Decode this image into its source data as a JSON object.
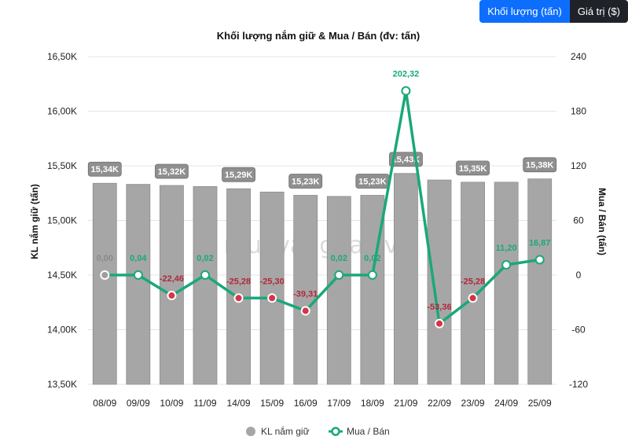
{
  "tabs": [
    {
      "label": "Khối lượng (tấn)",
      "active": true
    },
    {
      "label": "Giá trị ($)",
      "active": false
    }
  ],
  "watermark": "muavangbac.vn",
  "chart_data": {
    "type": "bar",
    "title": "Khối lượng nắm giữ & Mua / Bán (đv: tấn)",
    "categories": [
      "08/09",
      "09/09",
      "10/09",
      "11/09",
      "14/09",
      "15/09",
      "16/09",
      "17/09",
      "18/09",
      "21/09",
      "22/09",
      "23/09",
      "24/09",
      "25/09"
    ],
    "y_left": {
      "label": "KL nắm giữ (tấn)",
      "min": 13500,
      "max": 16500,
      "ticks": [
        13500,
        14000,
        14500,
        15000,
        15500,
        16000,
        16500
      ],
      "tick_labels": [
        "13,50K",
        "14,00K",
        "14,50K",
        "15,00K",
        "15,50K",
        "16,00K",
        "16,50K"
      ]
    },
    "y_right": {
      "label": "Mua / Bán (tấn)",
      "min": -120,
      "max": 240,
      "ticks": [
        -120,
        -60,
        0,
        60,
        120,
        180,
        240
      ],
      "tick_labels": [
        "-120",
        "-60",
        "0",
        "60",
        "120",
        "180",
        "240"
      ]
    },
    "series": [
      {
        "name": "KL nắm giữ",
        "type": "bar",
        "axis": "left",
        "color": "#a6a6a6",
        "values": [
          15340,
          15330,
          15320,
          15310,
          15290,
          15260,
          15230,
          15220,
          15230,
          15430,
          15370,
          15350,
          15350,
          15380
        ],
        "labels": [
          "15,34K",
          "",
          "15,32K",
          "",
          "15,29K",
          "",
          "15,23K",
          "",
          "15,23K",
          "15,43K",
          "",
          "15,35K",
          "",
          "15,38K"
        ]
      },
      {
        "name": "Mua / Bán",
        "type": "line",
        "axis": "right",
        "color": "#1aa87a",
        "values": [
          0,
          0.04,
          -22.46,
          0.02,
          -25.28,
          -25.3,
          -39.31,
          0.02,
          0.02,
          202.32,
          -53.36,
          -25.28,
          11.2,
          16.87
        ],
        "labels": [
          "0,00",
          "0,04",
          "-22,46",
          "0,02",
          "-25,28",
          "-25,30",
          "-39,31",
          "0,02",
          "0,02",
          "202,32",
          "-53,36",
          "-25,28",
          "11,20",
          "16,87"
        ]
      }
    ],
    "colors": {
      "positive": "#1aa87a",
      "negative": "#d63447",
      "zero": "#9e9e9e",
      "grid": "#e4e4e4"
    },
    "legend": {
      "position": "bottom"
    },
    "grid": true
  }
}
